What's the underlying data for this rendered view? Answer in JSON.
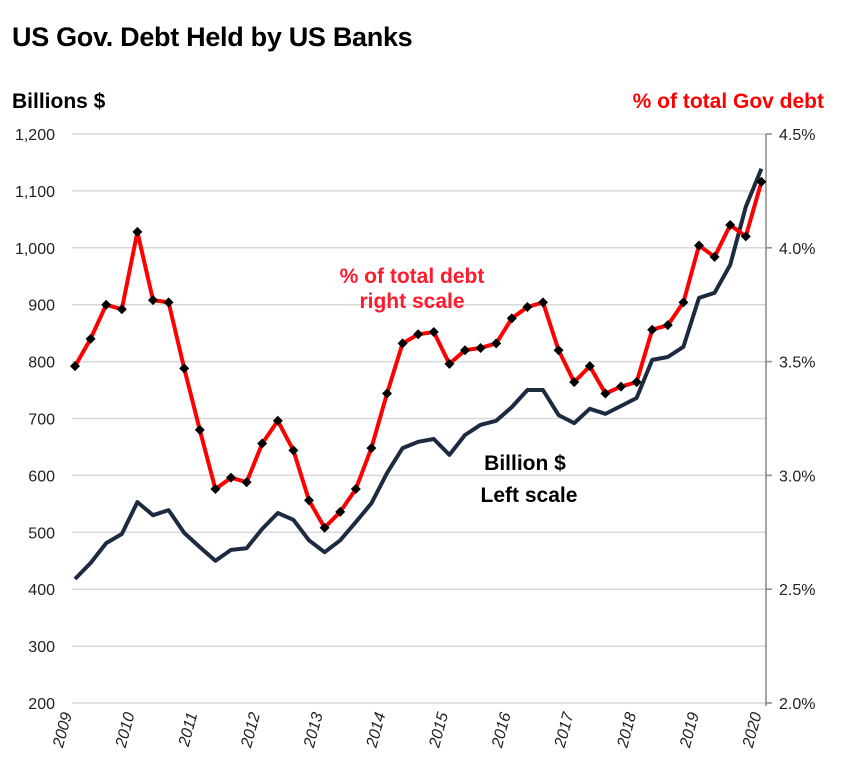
{
  "chart_data": {
    "type": "line",
    "title": "US Gov. Debt Held by US Banks",
    "ylabel": "Billions $",
    "y2label": "% of total Gov debt",
    "ylim": [
      200,
      1200
    ],
    "y2lim": [
      2.0,
      4.5
    ],
    "yticks": [
      "200",
      "300",
      "400",
      "500",
      "600",
      "700",
      "800",
      "900",
      "1,000",
      "1,100",
      "1,200"
    ],
    "y2ticks": [
      "2.0%",
      "2.5%",
      "3.0%",
      "3.5%",
      "4.0%",
      "4.5%"
    ],
    "xticks": [
      "2009",
      "2010",
      "2011",
      "2012",
      "2013",
      "2014",
      "2015",
      "2016",
      "2017",
      "2018",
      "2019",
      "2020"
    ],
    "x_start": 2009,
    "x_step": 0.25,
    "grid": true,
    "annotations": {
      "red_line1": "% of total debt",
      "red_line2": "right scale",
      "black_line1": "Billion $",
      "black_line2": "Left scale"
    },
    "series": [
      {
        "name": "Billion $",
        "axis": "left",
        "color": "#1c2b40",
        "values": [
          418,
          446,
          481,
          497,
          553,
          530,
          539,
          499,
          474,
          450,
          469,
          472,
          506,
          534,
          522,
          486,
          465,
          486,
          518,
          551,
          604,
          648,
          659,
          664,
          636,
          671,
          689,
          696,
          720,
          750,
          750,
          706,
          692,
          717,
          708,
          722,
          736,
          803,
          808,
          826,
          912,
          921,
          970,
          1072,
          1139
        ]
      },
      {
        "name": "% of total debt",
        "axis": "right",
        "color": "#ff0000",
        "marker_color": "#000000",
        "values": [
          3.48,
          3.6,
          3.75,
          3.73,
          4.07,
          3.77,
          3.76,
          3.47,
          3.2,
          2.94,
          2.99,
          2.97,
          3.14,
          3.24,
          3.11,
          2.89,
          2.77,
          2.84,
          2.94,
          3.12,
          3.36,
          3.58,
          3.62,
          3.63,
          3.49,
          3.55,
          3.56,
          3.58,
          3.69,
          3.74,
          3.76,
          3.55,
          3.41,
          3.48,
          3.36,
          3.39,
          3.41,
          3.64,
          3.66,
          3.76,
          4.01,
          3.96,
          4.1,
          4.05,
          4.29
        ]
      }
    ]
  }
}
